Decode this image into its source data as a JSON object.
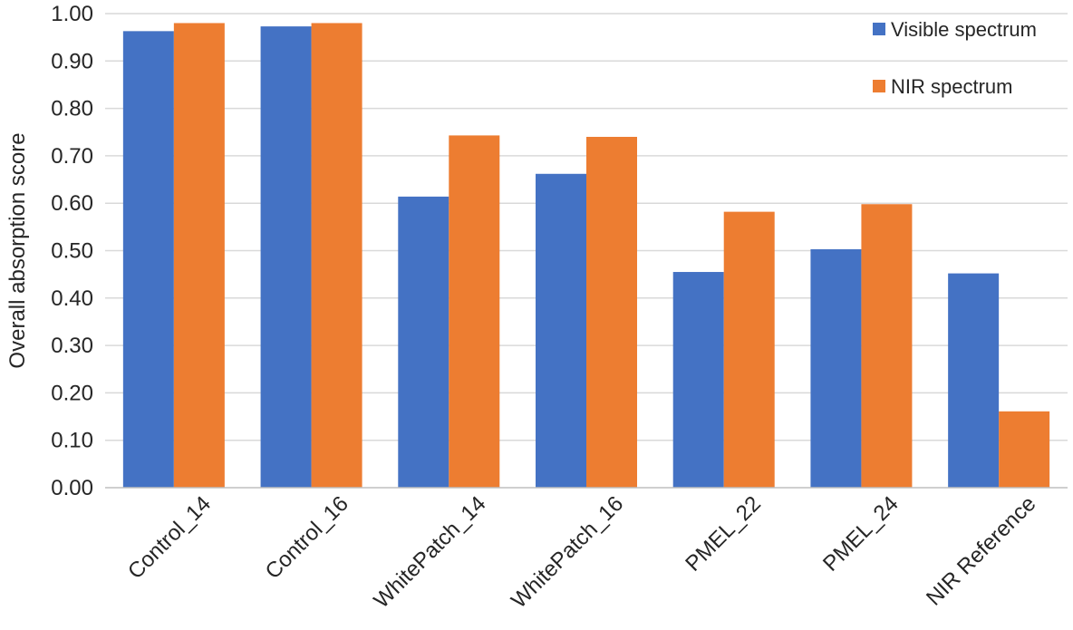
{
  "chart_data": {
    "type": "bar",
    "title": "",
    "xlabel": "",
    "ylabel": "Overall absorption score",
    "ylim": [
      0,
      1
    ],
    "yticks": [
      "0.00",
      "0.10",
      "0.20",
      "0.30",
      "0.40",
      "0.50",
      "0.60",
      "0.70",
      "0.80",
      "0.90",
      "1.00"
    ],
    "grid": true,
    "legend_position": "top-right",
    "categories": [
      "Control_14",
      "Control_16",
      "WhitePatch_14",
      "WhitePatch_16",
      "PMEL_22",
      "PMEL_24",
      "NIR Reference"
    ],
    "series": [
      {
        "name": "Visible spectrum",
        "color": "#4472C4",
        "values": [
          0.963,
          0.973,
          0.614,
          0.662,
          0.455,
          0.503,
          0.452
        ]
      },
      {
        "name": "NIR spectrum",
        "color": "#ED7D31",
        "values": [
          0.98,
          0.98,
          0.743,
          0.74,
          0.582,
          0.598,
          0.161
        ]
      }
    ]
  }
}
